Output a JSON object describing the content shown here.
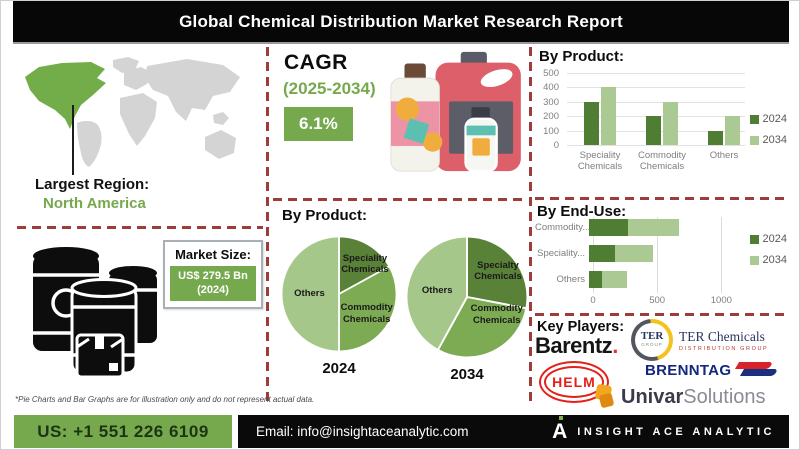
{
  "header": {
    "title": "Global Chemical Distribution Market Research Report"
  },
  "colors": {
    "accent_green": "#76a94d",
    "map_highlight": "#72ad4a",
    "map_gray": "#d4d4d4",
    "divider_red": "#9e3b3b",
    "pie_light": "#a6c78a",
    "pie_mid": "#7cab53",
    "pie_dark": "#5a8138",
    "bar_2024": "#4e7d33",
    "bar_2034": "#abc992"
  },
  "left": {
    "largest_region_label": "Largest Region:",
    "largest_region_value": "North America",
    "market_size_label": "Market Size:",
    "market_size_value": "US$ 279.5 Bn",
    "market_size_year": "(2024)"
  },
  "middle": {
    "cagr_label": "CAGR",
    "cagr_period": "(2025-2034)",
    "cagr_value": "6.1%",
    "by_product_heading": "By Product:"
  },
  "right": {
    "key_players_heading": "Key Players:"
  },
  "logos": {
    "barentz_text": "Barentz",
    "barentz_dot": ".",
    "ter_badge_text": "TER",
    "ter_badge_sub": "GROUP",
    "ter_name_line1": "TER Chemicals",
    "ter_name_line2": "DISTRIBUTION GROUP",
    "helm_text": "HELM",
    "brenntag_text": "BRENNTAG",
    "univar_text1": "Univar",
    "univar_text2": "Solutions"
  },
  "disclaimer": "*Pie Charts and Bar Graphs are for illustration only and do not represent actual data.",
  "footer": {
    "phone": "US: +1 551 226 6109",
    "email": "Email: info@insightaceanalytic.com",
    "brand": "INSIGHT ACE ANALYTIC",
    "logo_letter": "A"
  },
  "chart_data": [
    {
      "id": "by_product_bars",
      "type": "bar",
      "title": "By Product:",
      "categories": [
        "Speciality Chemicals",
        "Commodity Chemicals",
        "Others"
      ],
      "series": [
        {
          "name": "2024",
          "color": "#4e7d33",
          "values": [
            300,
            200,
            100
          ]
        },
        {
          "name": "2034",
          "color": "#abc992",
          "values": [
            400,
            300,
            200
          ]
        }
      ],
      "ylim": [
        0,
        500
      ],
      "yticks": [
        0,
        100,
        200,
        300,
        400,
        500
      ],
      "grid": true,
      "legend_position": "right"
    },
    {
      "id": "by_end_use_bars",
      "type": "bar",
      "orientation": "horizontal",
      "stacked": true,
      "title": "By End-Use:",
      "categories": [
        "Commodity...",
        "Speciality...",
        "Others"
      ],
      "series": [
        {
          "name": "2024",
          "color": "#4e7d33",
          "values": [
            300,
            200,
            100
          ]
        },
        {
          "name": "2034",
          "color": "#abc992",
          "values": [
            400,
            300,
            200
          ]
        }
      ],
      "xlim": [
        0,
        1200
      ],
      "xticks": [
        0,
        500,
        1000
      ],
      "grid": true,
      "legend_position": "right"
    },
    {
      "id": "pie_2024",
      "type": "pie",
      "title": "2024",
      "slices": [
        {
          "label": "Speciality Chemicals",
          "pct": 17,
          "color": "#5a8138"
        },
        {
          "label": "Commodity Chemicals",
          "pct": 33,
          "color": "#7cab53"
        },
        {
          "label": "Others",
          "pct": 50,
          "color": "#a6c78a"
        }
      ]
    },
    {
      "id": "pie_2034",
      "type": "pie",
      "title": "2034",
      "slices": [
        {
          "label": "Specialty Chemicals",
          "pct": 28,
          "color": "#5a8138"
        },
        {
          "label": "Commodity Chemicals",
          "pct": 30,
          "color": "#7cab53"
        },
        {
          "label": "Others",
          "pct": 42,
          "color": "#a6c78a"
        }
      ]
    }
  ]
}
